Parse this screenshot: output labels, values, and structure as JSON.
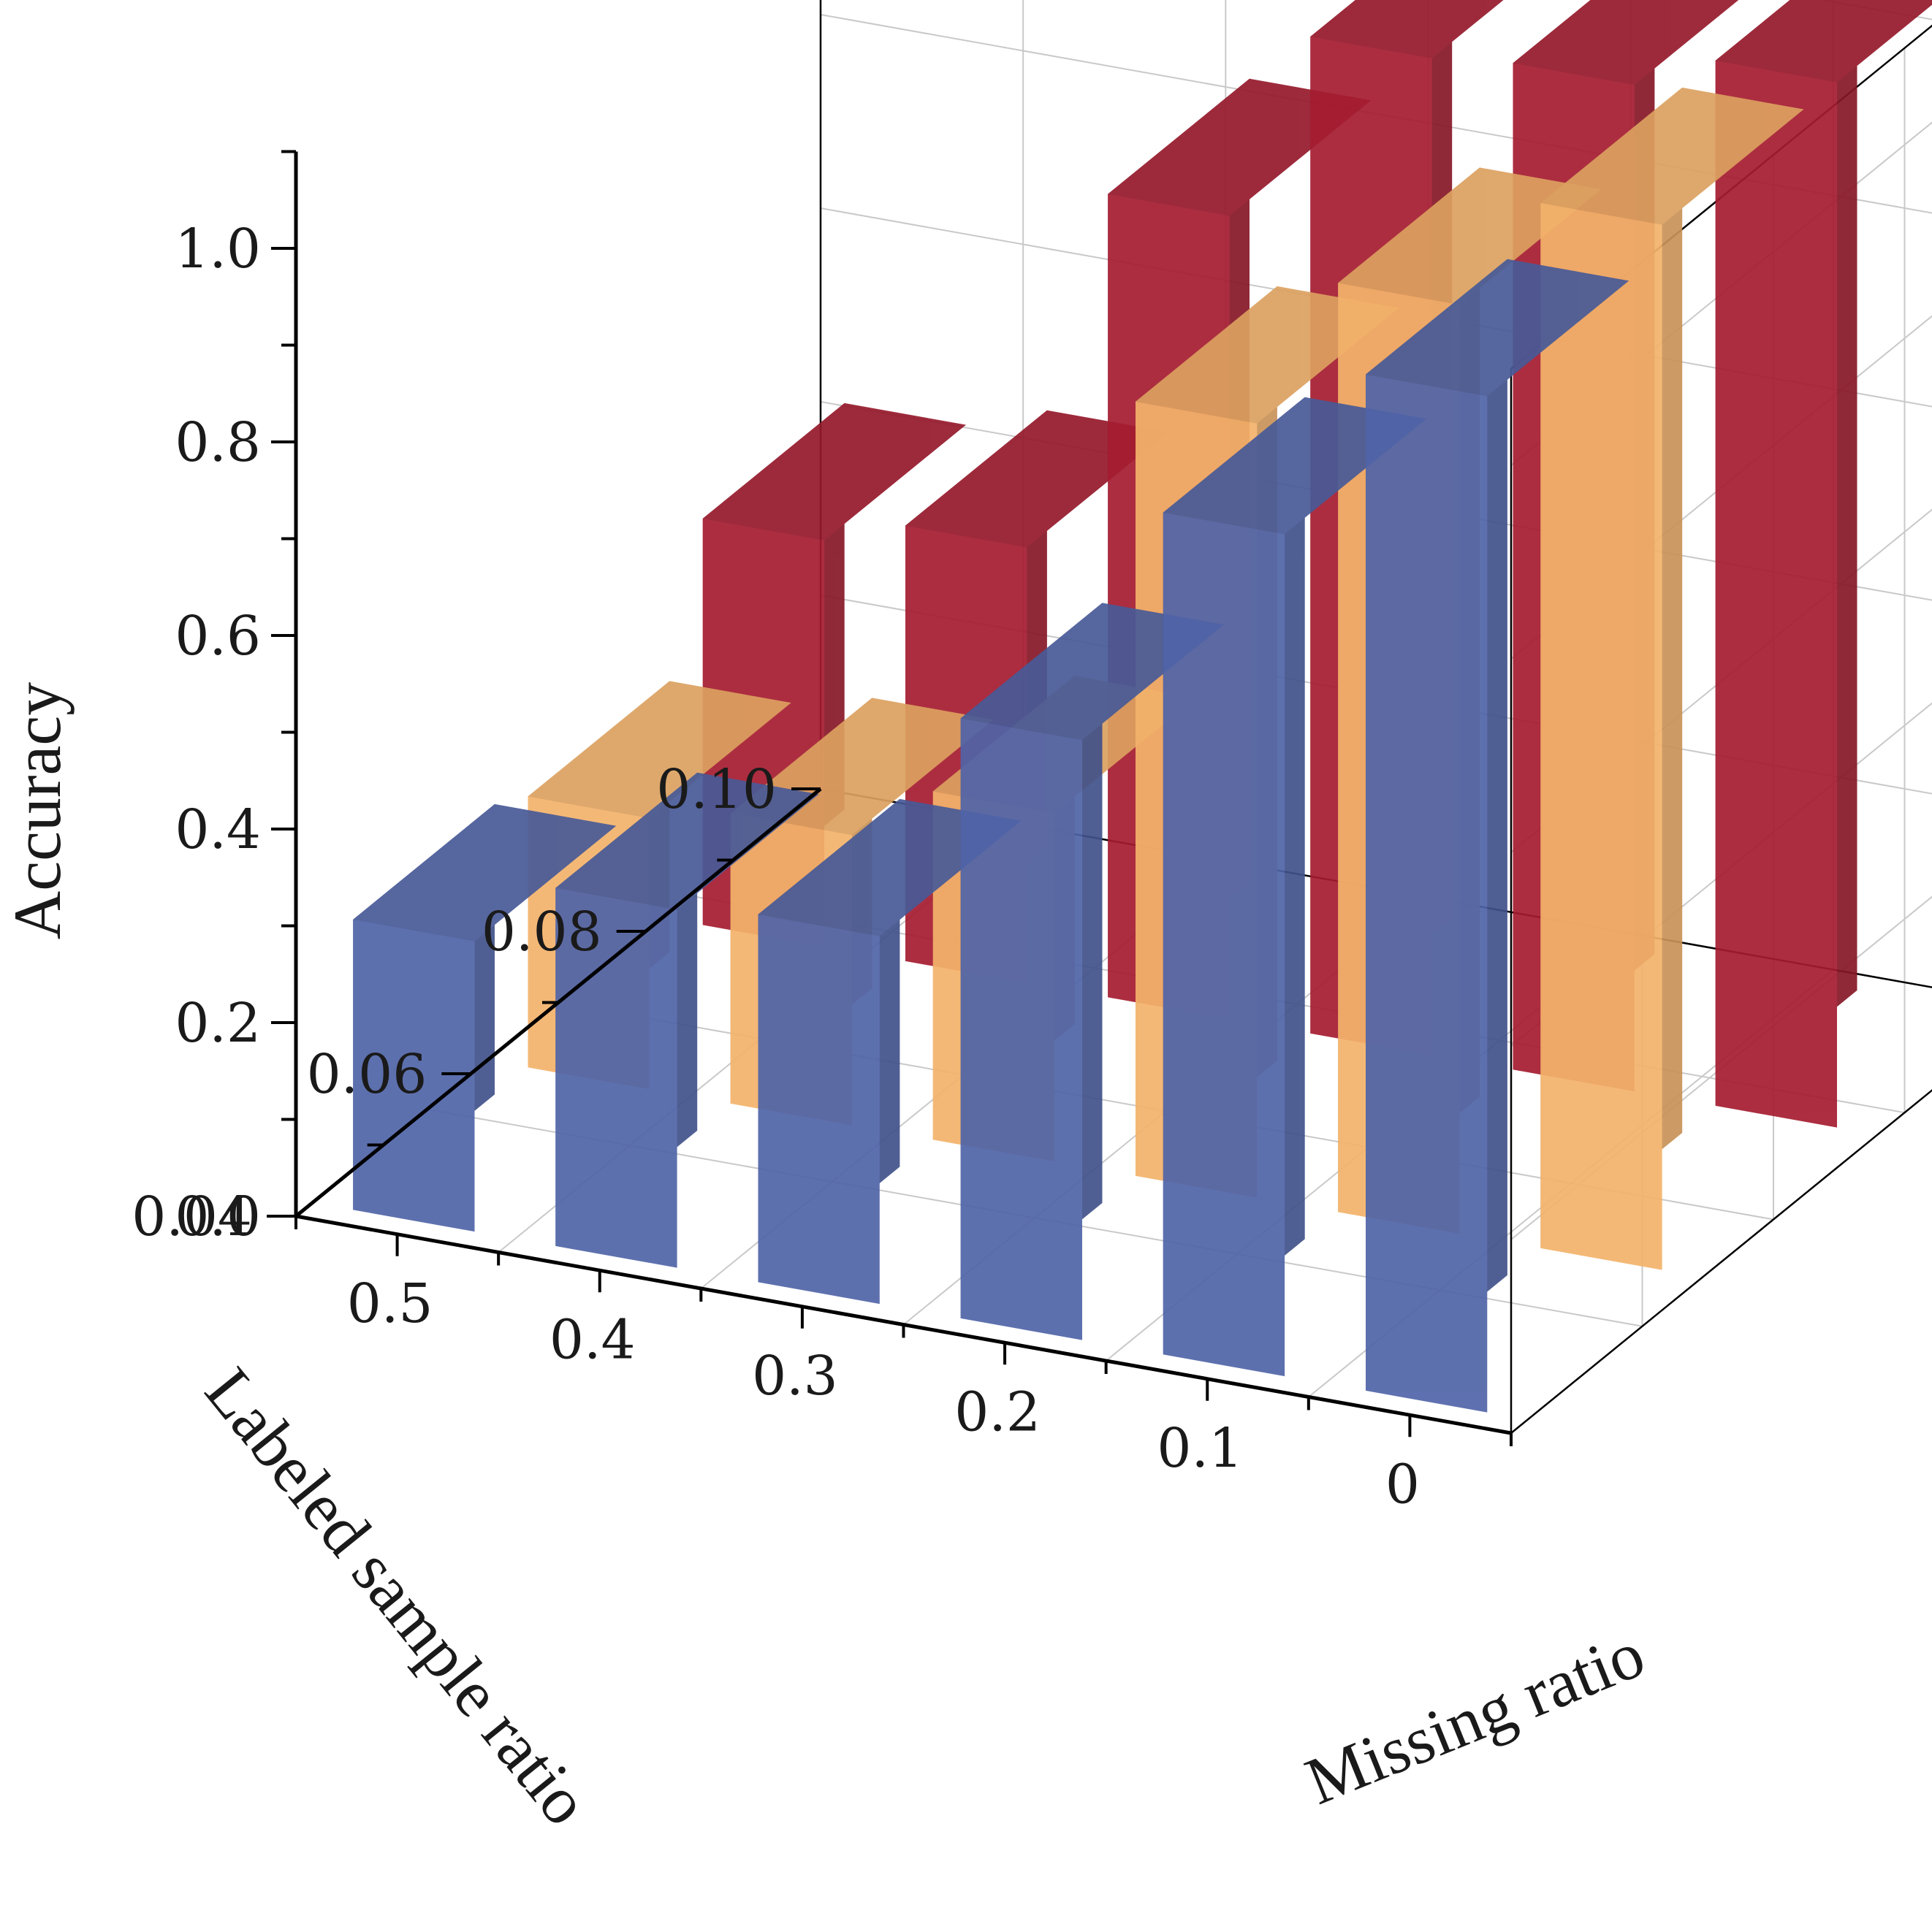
{
  "chart_data": {
    "type": "bar3d",
    "zlabel": "Accuracy",
    "ylabel": "Labeled sample ratio",
    "xlabel": "Missing ratio",
    "zlim": [
      0,
      1.1
    ],
    "z_ticks": [
      "0.0",
      "0.2",
      "0.4",
      "0.6",
      "0.8",
      "1.0"
    ],
    "missing_ratio_ticks": [
      "0.5",
      "0.4",
      "0.3",
      "0.2",
      "0.1",
      "0"
    ],
    "labeled_ratio_ticks": [
      "0.10",
      "0.08",
      "0.06",
      "0.04"
    ],
    "grid": true,
    "series": [
      {
        "labeled_ratio": "0.10",
        "color": "#a51c30",
        "values": [
          0.42,
          0.45,
          0.83,
          1.03,
          1.04,
          1.08
        ]
      },
      {
        "labeled_ratio": "0.08",
        "color": "#f4b36b",
        "values": [
          0.28,
          0.3,
          0.36,
          0.8,
          0.96,
          1.08
        ]
      },
      {
        "labeled_ratio": "0.06",
        "color": "#5064a8",
        "values": [
          0.3,
          0.37,
          0.38,
          0.62,
          0.87,
          1.05
        ]
      }
    ]
  }
}
